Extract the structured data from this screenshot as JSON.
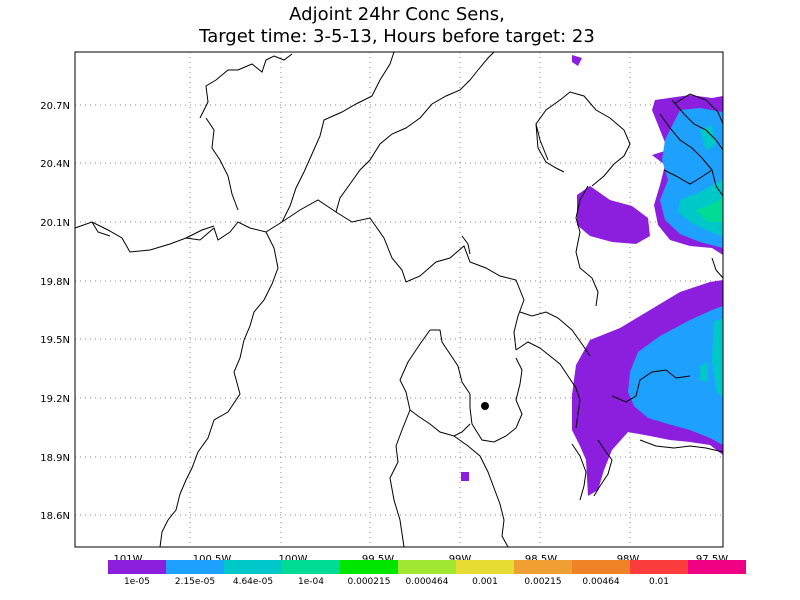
{
  "title": {
    "line1": "Adjoint 24hr Conc Sens,",
    "line2": "Target time: 3-5-13, Hours before target: 23"
  },
  "chart_data": {
    "type": "heatmap",
    "lat_labels": [
      "20.7N",
      "20.4N",
      "20.1N",
      "19.8N",
      "19.5N",
      "19.2N",
      "18.9N",
      "18.6N"
    ],
    "lon_labels": [
      "101W",
      "100.5W",
      "100W",
      "99.5W",
      "99W",
      "98.5W",
      "98W",
      "97.5W"
    ],
    "colorbar": {
      "labels": [
        "1e-05",
        "2.15e-05",
        "4.64e-05",
        "1e-04",
        "0.000215",
        "0.000464",
        "0.001",
        "0.00215",
        "0.00464",
        "0.01"
      ],
      "colors": [
        "#8c1ede",
        "#1ea0ff",
        "#00c8c8",
        "#00dc96",
        "#00e600",
        "#a0e632",
        "#e6dc32",
        "#f0a032",
        "#f08228",
        "#fa3c3c",
        "#f00082"
      ]
    },
    "grid": true,
    "target_marker": "black dot"
  }
}
